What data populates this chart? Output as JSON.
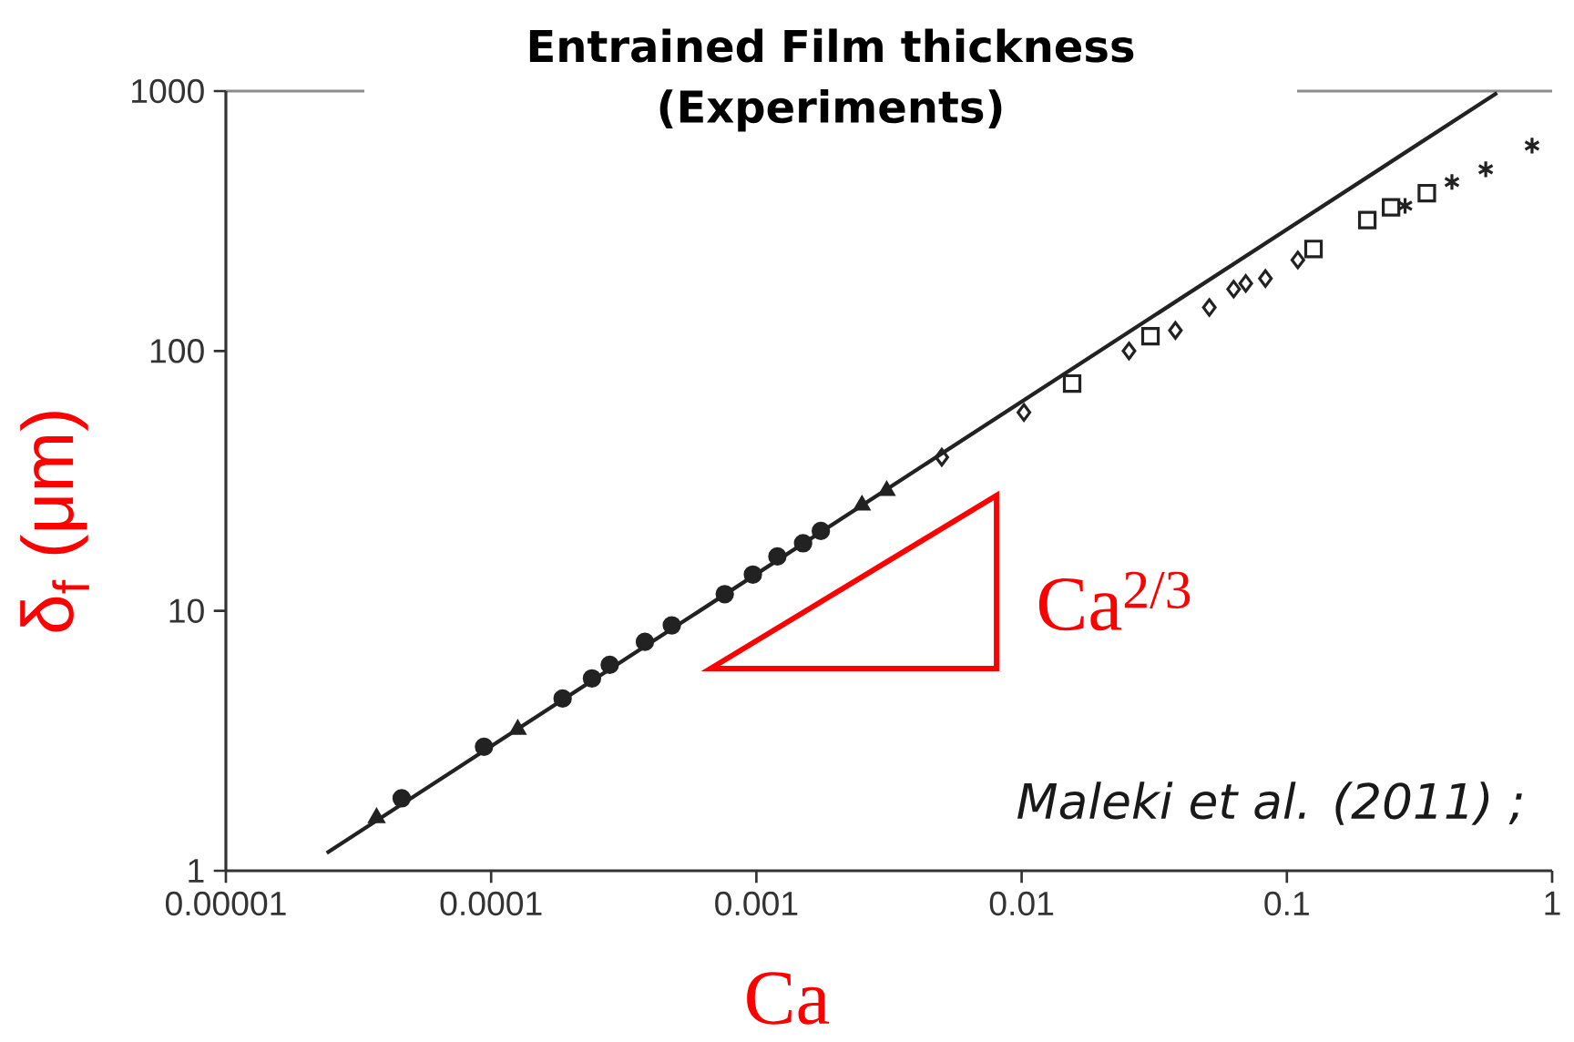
{
  "chart_data": {
    "type": "scatter",
    "title": "**Entrained Film thickness**\n**(Experiments)**",
    "xlabel": "Ca",
    "ylabel": "δ$_{f}$ (μm)",
    "log": "xy",
    "xlim": [
      1e-05,
      1
    ],
    "ylim": [
      1,
      1000
    ],
    "xticks": [
      {
        "value": 1e-05,
        "label": "0.00001"
      },
      {
        "value": 0.0001,
        "label": "0.0001"
      },
      {
        "value": 0.001,
        "label": "0.001"
      },
      {
        "value": 0.01,
        "label": "0.01"
      },
      {
        "value": 0.1,
        "label": "0.1"
      },
      {
        "value": 1,
        "label": "1"
      }
    ],
    "yticks": [
      1,
      10,
      100,
      1000
    ],
    "series": [
      {
        "color": "#222222",
        "marker": "circle",
        "x": [
          4.6e-05,
          9.4e-05,
          0.000186,
          0.00024,
          0.00028,
          0.00038,
          0.00048,
          0.00076,
          0.00097,
          0.0012,
          0.0015,
          0.00175
        ],
        "values": [
          1.9,
          3.0,
          4.6,
          5.5,
          6.2,
          7.6,
          8.8,
          11.6,
          13.8,
          16.2,
          18.2,
          20.3
        ]
      },
      {
        "color": "#222222",
        "marker": "triangle",
        "x": [
          3.7e-05,
          0.000126,
          0.0025,
          0.0031
        ],
        "values": [
          1.6,
          3.5,
          25.5,
          29
        ]
      },
      {
        "color": "#222222",
        "marker": "diamond",
        "x": [
          0.005,
          0.0102,
          0.0254,
          0.038,
          0.051,
          0.063,
          0.07,
          0.083,
          0.11
        ],
        "values": [
          39,
          58,
          100,
          120,
          147,
          173,
          182,
          190,
          224
        ]
      },
      {
        "color": "#222222",
        "marker": "square",
        "x": [
          0.0155,
          0.0306,
          0.126,
          0.201,
          0.247,
          0.337
        ],
        "values": [
          75,
          114,
          247,
          319,
          357,
          405
        ]
      },
      {
        "color": "#222222",
        "marker": "cross",
        "x": [
          0.279,
          0.419,
          0.562,
          0.84
        ],
        "values": [
          362,
          447,
          500,
          617
        ]
      },
      {
        "type": "line",
        "color": "#222222",
        "marker": "none",
        "line_style": "solid",
        "x": [
          2.4e-05,
          0.62
        ],
        "values": [
          1.17,
          984
        ]
      }
    ],
    "annotations": [
      "Ca$^{2/3}$",
      "*Maleki et al. (2011) ;*"
    ]
  }
}
